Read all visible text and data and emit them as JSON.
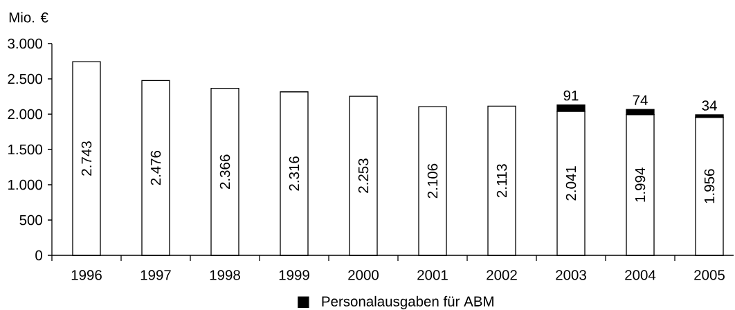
{
  "chart_data": {
    "type": "bar",
    "stacked": true,
    "ylabel": "Mio. €",
    "categories": [
      "1996",
      "1997",
      "1998",
      "1999",
      "2000",
      "2001",
      "2002",
      "2003",
      "2004",
      "2005"
    ],
    "series": [
      {
        "color": "#ffffff",
        "values": [
          2743,
          2476,
          2366,
          2316,
          2253,
          2106,
          2113,
          2041,
          1994,
          1956
        ],
        "value_labels": [
          "2.743",
          "2.476",
          "2.366",
          "2.316",
          "2.253",
          "2.106",
          "2.113",
          "2.041",
          "1.994",
          "1.956"
        ]
      },
      {
        "name": "Personalausgaben für ABM",
        "color": "#000000",
        "values": [
          null,
          null,
          null,
          null,
          null,
          null,
          null,
          91,
          74,
          34
        ],
        "value_labels": [
          null,
          null,
          null,
          null,
          null,
          null,
          null,
          "91",
          "74",
          "34"
        ]
      }
    ],
    "ylim": [
      0,
      3000
    ],
    "yticks": [
      0,
      500,
      {
        "value": 1000,
        "label": "1.000"
      },
      {
        "value": 1500,
        "label": "1.500"
      },
      {
        "value": 2000,
        "label": "2.000"
      },
      {
        "value": 2500,
        "label": "2.500"
      },
      {
        "value": 3000,
        "label": "3.000"
      }
    ],
    "legend": "bottom"
  }
}
